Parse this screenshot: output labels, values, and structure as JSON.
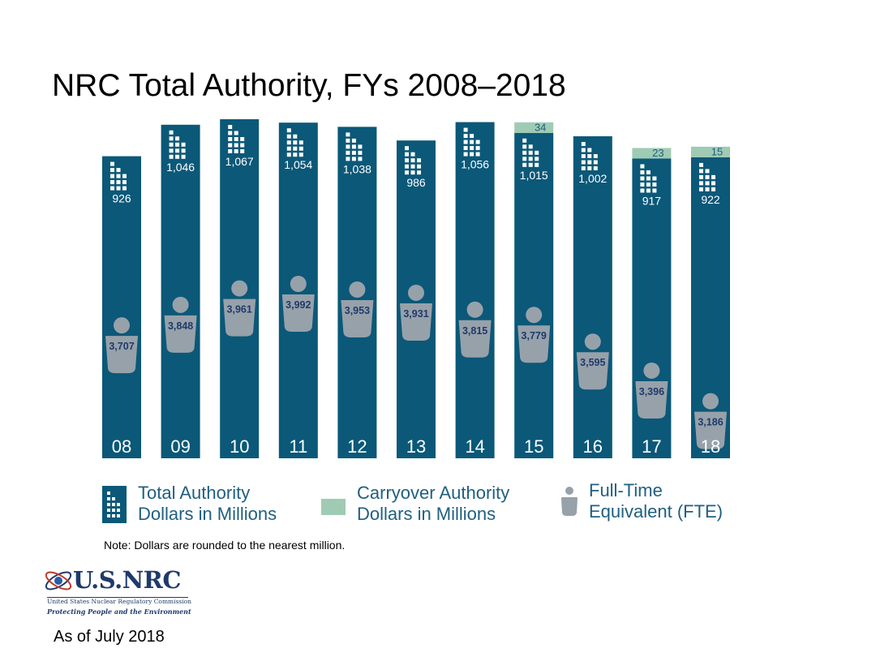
{
  "slide": {
    "title": "NRC Total Authority, FYs 2008–2018",
    "note": "Note: Dollars are rounded to the nearest million.",
    "as_of": "As of July 2018"
  },
  "legend": {
    "total_authority": [
      "Total Authority",
      "Dollars in Millions"
    ],
    "carryover_authority": [
      "Carryover Authority",
      "Dollars in Millions"
    ],
    "fte": [
      "Full-Time",
      "Equivalent (FTE)"
    ]
  },
  "logo": {
    "wordmark": "U.S.NRC",
    "organization": "United States Nuclear Regulatory Commission",
    "tagline": "Protecting People and the Environment"
  },
  "colors": {
    "total_authority": "#0b5878",
    "carryover_authority": "#9fcbb4",
    "fte_icon": "#97a1aa",
    "fte_label": "#1f3a6b",
    "legend_text": "#1f5f80"
  },
  "chart_data": {
    "type": "bar",
    "title": "NRC Total Authority, FYs 2008–2018",
    "categories": [
      "08",
      "09",
      "10",
      "11",
      "12",
      "13",
      "14",
      "15",
      "16",
      "17",
      "18"
    ],
    "series": [
      {
        "name": "Total Authority Dollars in Millions",
        "values": [
          926,
          1046,
          1067,
          1054,
          1038,
          986,
          1056,
          1015,
          1002,
          917,
          922
        ],
        "labels": [
          "926",
          "1,046",
          "1,067",
          "1,054",
          "1,038",
          "986",
          "1,056",
          "1,015",
          "1,002",
          "917",
          "922"
        ]
      },
      {
        "name": "Carryover Authority Dollars in Millions",
        "values": [
          null,
          null,
          null,
          null,
          null,
          null,
          null,
          34,
          null,
          23,
          15
        ],
        "labels": [
          "",
          "",
          "",
          "",
          "",
          "",
          "",
          "34",
          "",
          "23",
          "15"
        ]
      },
      {
        "name": "Full-Time Equivalent (FTE)",
        "values": [
          3707,
          3848,
          3961,
          3992,
          3953,
          3931,
          3815,
          3779,
          3595,
          3396,
          3186
        ],
        "labels": [
          "3,707",
          "3,848",
          "3,961",
          "3,992",
          "3,953",
          "3,931",
          "3,815",
          "3,779",
          "3,595",
          "3,396",
          "3,186"
        ]
      }
    ],
    "stacked": true,
    "legend_position": "bottom",
    "grid": false
  }
}
